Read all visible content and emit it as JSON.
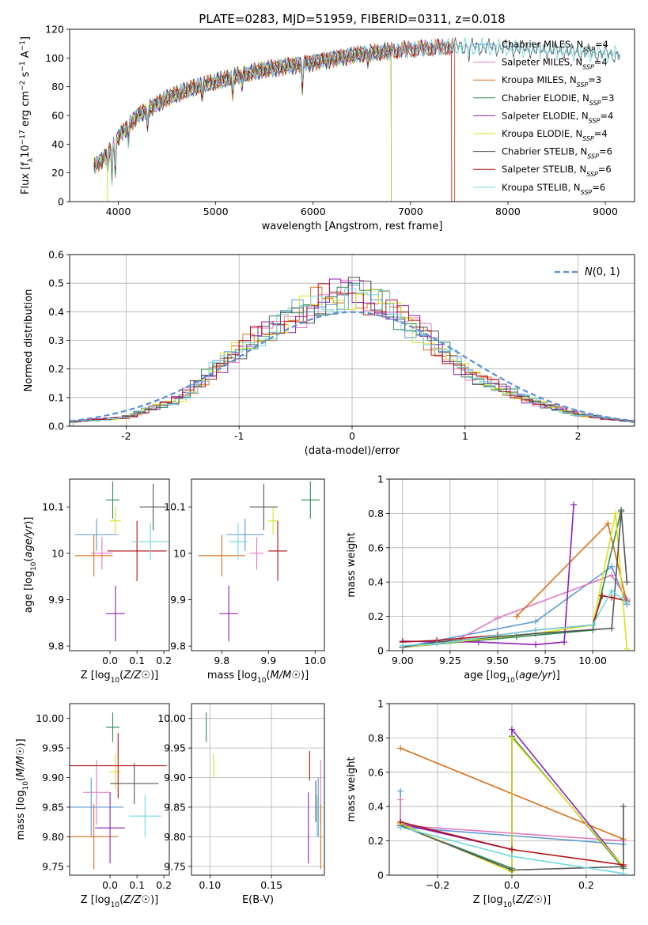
{
  "figure": {
    "title": "PLATE=0283, MJD=51959, FIBERID=0311, z=0.018",
    "colors": [
      "#5b9bd5",
      "#e377c2",
      "#d9701a",
      "#2e8b57",
      "#8e1fb5",
      "#d9e21a",
      "#555555",
      "#b21010",
      "#6fd6e0"
    ]
  },
  "chart_data": [
    {
      "id": "spectrum",
      "type": "line",
      "title": "PLATE=0283, MJD=51959, FIBERID=0311, z=0.018",
      "xlabel": "wavelength [Angstrom, rest frame]",
      "ylabel": "Flux [f_λ 10^-17 erg cm^-2 s^-1 A^-1]",
      "xlim": [
        3500,
        9300
      ],
      "ylim": [
        0,
        120
      ],
      "xticks": [
        4000,
        5000,
        6000,
        7000,
        8000,
        9000
      ],
      "yticks": [
        0,
        20,
        40,
        60,
        80,
        100,
        120
      ],
      "legend_loc": "top-right",
      "series": [
        {
          "name": "Chabrier MILES, N_SSP=4",
          "range": [
            3750,
            7450
          ]
        },
        {
          "name": "Salpeter MILES, N_SSP=4",
          "range": [
            3750,
            7450
          ]
        },
        {
          "name": "Kroupa MILES, N_SSP=3",
          "range": [
            3750,
            7450
          ]
        },
        {
          "name": "Chabrier ELODIE, N_SSP=3",
          "range": [
            3750,
            6800
          ]
        },
        {
          "name": "Salpeter ELODIE, N_SSP=4",
          "range": [
            3750,
            6800
          ]
        },
        {
          "name": "Kroupa ELODIE, N_SSP=4",
          "range": [
            3750,
            6800
          ]
        },
        {
          "name": "Chabrier STELIB, N_SSP=6",
          "range": [
            3750,
            9150
          ]
        },
        {
          "name": "Salpeter STELIB, N_SSP=6",
          "range": [
            3750,
            7420
          ]
        },
        {
          "name": "Kroupa STELIB, N_SSP=6",
          "range": [
            3750,
            9150
          ]
        }
      ],
      "continuum": {
        "x": [
          3750,
          3850,
          4000,
          4200,
          4500,
          4800,
          5200,
          5500,
          6000,
          6500,
          7000,
          7500,
          8000,
          8500,
          9000,
          9150
        ],
        "y": [
          25,
          30,
          45,
          60,
          72,
          80,
          87,
          92,
          97,
          103,
          106,
          108,
          107,
          105,
          103,
          102
        ]
      },
      "features": [
        {
          "x": 3890,
          "depth": 12
        },
        {
          "x": 3934,
          "depth": 22
        },
        {
          "x": 3969,
          "depth": 20
        },
        {
          "x": 4102,
          "depth": 10
        },
        {
          "x": 4300,
          "depth": 12
        },
        {
          "x": 4861,
          "depth": 8
        },
        {
          "x": 5175,
          "depth": 12
        },
        {
          "x": 5270,
          "depth": 6
        },
        {
          "x": 5890,
          "depth": 16
        },
        {
          "x": 6563,
          "depth": 6
        },
        {
          "x": 7600,
          "depth": 6
        }
      ]
    },
    {
      "id": "residuals",
      "type": "histogram",
      "xlabel": "(data-model)/error",
      "ylabel": "Normed distribution",
      "xlim": [
        -2.5,
        2.5
      ],
      "ylim": [
        0,
        0.6
      ],
      "xticks": [
        -2,
        -1,
        0,
        1,
        2
      ],
      "yticks": [
        0.0,
        0.1,
        0.2,
        0.3,
        0.4,
        0.5,
        0.6
      ],
      "grid": true,
      "legend_loc": "top-right",
      "reference_curve": {
        "name": "N(0,1)",
        "mean": 0,
        "sigma": 1
      },
      "bin_width": 0.1,
      "envelope": {
        "x": [
          -2.5,
          -2.0,
          -1.5,
          -1.0,
          -0.5,
          0.0,
          0.5,
          1.0,
          1.5,
          2.0,
          2.5
        ],
        "y": [
          0.015,
          0.03,
          0.1,
          0.27,
          0.39,
          0.48,
          0.37,
          0.19,
          0.1,
          0.04,
          0.015
        ]
      }
    },
    {
      "id": "age_vs_Z",
      "type": "errorbar",
      "xlabel": "Z [log10(Z/Z☉)]",
      "ylabel": "age [log10(age/yr)]",
      "xlim": [
        -0.15,
        0.22
      ],
      "ylim": [
        9.79,
        10.16
      ],
      "xticks": [
        0.0,
        0.1,
        0.2
      ],
      "xtick_labels": [
        "0.0",
        "0.1",
        "0.2"
      ],
      "yticks": [
        9.8,
        9.9,
        10.0,
        10.1
      ],
      "points": [
        {
          "x": -0.05,
          "y": 10.04,
          "xe": 0.08,
          "ye": 0.035
        },
        {
          "x": -0.03,
          "y": 10.0,
          "xe": 0.04,
          "ye": 0.035
        },
        {
          "x": -0.06,
          "y": 9.995,
          "xe": 0.07,
          "ye": 0.045
        },
        {
          "x": 0.01,
          "y": 10.115,
          "xe": 0.025,
          "ye": 0.04
        },
        {
          "x": 0.02,
          "y": 9.87,
          "xe": 0.035,
          "ye": 0.06
        },
        {
          "x": 0.02,
          "y": 10.07,
          "xe": 0.02,
          "ye": 0.03
        },
        {
          "x": 0.16,
          "y": 10.1,
          "xe": 0.05,
          "ye": 0.05
        },
        {
          "x": 0.1,
          "y": 10.005,
          "xe": 0.11,
          "ye": 0.065
        },
        {
          "x": 0.15,
          "y": 10.025,
          "xe": 0.07,
          "ye": 0.04
        }
      ]
    },
    {
      "id": "age_vs_mass",
      "type": "errorbar",
      "xlabel": "mass [log10(M/M☉)]",
      "ylabel": "",
      "xlim": [
        9.735,
        10.02
      ],
      "ylim": [
        9.79,
        10.16
      ],
      "xticks": [
        9.8,
        9.9,
        10.0
      ],
      "xtick_labels": [
        "9.8",
        "9.9",
        "10.0"
      ],
      "yticks": [
        9.8,
        9.9,
        10.0,
        10.1
      ],
      "points": [
        {
          "x": 9.85,
          "y": 10.04,
          "xe": 0.04,
          "ye": 0.035
        },
        {
          "x": 9.875,
          "y": 10.0,
          "xe": 0.015,
          "ye": 0.035
        },
        {
          "x": 9.8,
          "y": 9.995,
          "xe": 0.05,
          "ye": 0.045
        },
        {
          "x": 9.99,
          "y": 10.115,
          "xe": 0.02,
          "ye": 0.04
        },
        {
          "x": 9.815,
          "y": 9.87,
          "xe": 0.02,
          "ye": 0.06
        },
        {
          "x": 9.91,
          "y": 10.07,
          "xe": 0.01,
          "ye": 0.03
        },
        {
          "x": 9.89,
          "y": 10.1,
          "xe": 0.03,
          "ye": 0.05
        },
        {
          "x": 9.92,
          "y": 10.005,
          "xe": 0.02,
          "ye": 0.065
        },
        {
          "x": 9.835,
          "y": 10.025,
          "xe": 0.02,
          "ye": 0.04
        }
      ]
    },
    {
      "id": "mass_weight_vs_age",
      "type": "line",
      "xlabel": "age [log10(age/yr)]",
      "ylabel": "mass weight",
      "xlim": [
        8.93,
        10.22
      ],
      "ylim": [
        0,
        1
      ],
      "xticks": [
        9.0,
        9.25,
        9.5,
        9.75,
        10.0
      ],
      "xtick_labels": [
        "9.00",
        "9.25",
        "9.50",
        "9.75",
        "10.00"
      ],
      "yticks": [
        0.0,
        0.2,
        0.4,
        0.6,
        0.8,
        1.0
      ],
      "grid": true,
      "series": [
        {
          "x": [
            9.0,
            9.7,
            10.1,
            10.18
          ],
          "y": [
            0.02,
            0.17,
            0.49,
            0.27
          ]
        },
        {
          "x": [
            9.3,
            9.5,
            10.1,
            10.18
          ],
          "y": [
            0.07,
            0.19,
            0.44,
            0.3
          ]
        },
        {
          "x": [
            9.6,
            10.08,
            10.18
          ],
          "y": [
            0.2,
            0.74,
            0.28
          ]
        },
        {
          "x": [
            9.0,
            9.6,
            10.0,
            10.15
          ],
          "y": [
            0.02,
            0.08,
            0.12,
            0.82
          ]
        },
        {
          "x": [
            9.0,
            9.4,
            9.7,
            9.85,
            9.9
          ],
          "y": [
            0.055,
            0.05,
            0.035,
            0.05,
            0.85
          ]
        },
        {
          "x": [
            9.0,
            9.7,
            10.0,
            10.12,
            10.18
          ],
          "y": [
            0.02,
            0.1,
            0.15,
            0.8,
            0.01
          ]
        },
        {
          "x": [
            9.0,
            9.18,
            9.7,
            10.1,
            10.15,
            10.18
          ],
          "y": [
            0.02,
            0.05,
            0.1,
            0.13,
            0.81,
            0.4
          ]
        },
        {
          "x": [
            9.0,
            9.18,
            9.5,
            9.7,
            10.0,
            10.05,
            10.1,
            10.18
          ],
          "y": [
            0.05,
            0.06,
            0.09,
            0.12,
            0.15,
            0.32,
            0.31,
            0.29
          ]
        },
        {
          "x": [
            9.0,
            9.18,
            9.7,
            10.0,
            10.1,
            10.18
          ],
          "y": [
            0.03,
            0.04,
            0.12,
            0.15,
            0.35,
            0.28
          ]
        }
      ]
    },
    {
      "id": "mass_vs_Z",
      "type": "errorbar",
      "xlabel": "Z [log10(Z/Z☉)]",
      "ylabel": "mass [log10(M/M☉)]",
      "xlim": [
        -0.15,
        0.22
      ],
      "ylim": [
        9.735,
        10.025
      ],
      "xticks": [
        0.0,
        0.1,
        0.2
      ],
      "xtick_labels": [
        "0.0",
        "0.1",
        "0.2"
      ],
      "yticks": [
        9.75,
        9.8,
        9.85,
        9.9,
        9.95,
        10.0
      ],
      "ytick_labels": [
        "9.75",
        "9.80",
        "9.85",
        "9.90",
        "9.95",
        "10.00"
      ],
      "points": [
        {
          "x": -0.07,
          "y": 9.85,
          "xe": 0.12,
          "ye": 0.05
        },
        {
          "x": -0.05,
          "y": 9.875,
          "xe": 0.05,
          "ye": 0.055
        },
        {
          "x": -0.06,
          "y": 9.8,
          "xe": 0.09,
          "ye": 0.055
        },
        {
          "x": 0.01,
          "y": 9.985,
          "xe": 0.025,
          "ye": 0.025
        },
        {
          "x": 0.0,
          "y": 9.815,
          "xe": 0.055,
          "ye": 0.06
        },
        {
          "x": 0.02,
          "y": 9.91,
          "xe": 0.02,
          "ye": 0.03
        },
        {
          "x": 0.09,
          "y": 9.89,
          "xe": 0.09,
          "ye": 0.035
        },
        {
          "x": 0.03,
          "y": 9.92,
          "xe": 0.18,
          "ye": 0.055
        },
        {
          "x": 0.13,
          "y": 9.835,
          "xe": 0.06,
          "ye": 0.035
        }
      ]
    },
    {
      "id": "mass_vs_ebv",
      "type": "errorbar",
      "xlabel": "E(B-V)",
      "ylabel": "",
      "xlim": [
        0.085,
        0.193
      ],
      "ylim": [
        9.735,
        10.025
      ],
      "xticks": [
        0.1,
        0.15
      ],
      "xtick_labels": [
        "0.10",
        "0.15"
      ],
      "yticks": [
        9.75,
        9.8,
        9.85,
        9.9,
        9.95,
        10.0
      ],
      "ytick_labels": [
        "9.75",
        "9.80",
        "9.85",
        "9.90",
        "9.95",
        "10.00"
      ],
      "grid": true,
      "points": [
        {
          "x": 0.188,
          "y": 9.85,
          "xe": 0.0,
          "ye": 0.05
        },
        {
          "x": 0.19,
          "y": 9.875,
          "xe": 0.0,
          "ye": 0.055
        },
        {
          "x": 0.19,
          "y": 9.8,
          "xe": 0.0,
          "ye": 0.055
        },
        {
          "x": 0.097,
          "y": 9.985,
          "xe": 0.0,
          "ye": 0.025
        },
        {
          "x": 0.18,
          "y": 9.815,
          "xe": 0.0,
          "ye": 0.06
        },
        {
          "x": 0.103,
          "y": 9.92,
          "xe": 0.0,
          "ye": 0.02
        },
        {
          "x": 0.186,
          "y": 9.86,
          "xe": 0.0,
          "ye": 0.035
        },
        {
          "x": 0.181,
          "y": 9.92,
          "xe": 0.0,
          "ye": 0.025
        },
        {
          "x": 0.187,
          "y": 9.835,
          "xe": 0.0,
          "ye": 0.035
        }
      ]
    },
    {
      "id": "mass_weight_vs_Z",
      "type": "line",
      "xlabel": "Z [log10(Z/Z☉)]",
      "ylabel": "mass weight",
      "xlim": [
        -0.33,
        0.33
      ],
      "ylim": [
        0,
        1
      ],
      "xticks": [
        -0.2,
        0.0,
        0.2
      ],
      "xtick_labels": [
        "−0.2",
        "0.0",
        "0.2"
      ],
      "yticks": [
        0.0,
        0.2,
        0.4,
        0.6,
        0.8,
        1.0
      ],
      "grid": true,
      "series": [
        {
          "x": [
            -0.3,
            -0.3,
            0.3
          ],
          "y": [
            0.49,
            0.28,
            0.18
          ]
        },
        {
          "x": [
            -0.3,
            -0.3,
            0.3
          ],
          "y": [
            0.44,
            0.29,
            0.2
          ]
        },
        {
          "x": [
            -0.3,
            0.3
          ],
          "y": [
            0.74,
            0.21
          ]
        },
        {
          "x": [
            -0.3,
            0.0,
            0.0,
            0.3
          ],
          "y": [
            0.29,
            0.04,
            0.81,
            0.04
          ]
        },
        {
          "x": [
            -0.3,
            0.0,
            0.0,
            0.3
          ],
          "y": [
            0.3,
            0.15,
            0.85,
            0.05
          ]
        },
        {
          "x": [
            -0.3,
            0.0,
            0.0,
            0.3
          ],
          "y": [
            0.3,
            0.02,
            0.8,
            0.05
          ]
        },
        {
          "x": [
            -0.3,
            0.0,
            0.3,
            0.3
          ],
          "y": [
            0.29,
            0.03,
            0.05,
            0.4
          ]
        },
        {
          "x": [
            -0.3,
            0.0,
            0.3
          ],
          "y": [
            0.31,
            0.15,
            0.06
          ]
        },
        {
          "x": [
            -0.3,
            0.0,
            0.3
          ],
          "y": [
            0.28,
            0.11,
            0.01
          ]
        }
      ]
    }
  ]
}
